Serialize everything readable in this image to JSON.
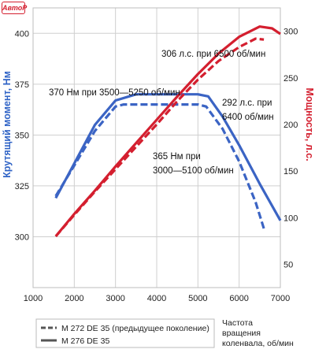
{
  "logo": {
    "text": "АвтоР"
  },
  "chart_data": {
    "type": "line",
    "title": "",
    "xlabel": "Частота вращения коленвала, об/мин",
    "xlabel_lines": [
      "Частота",
      "вращения",
      "коленвала, об/мин"
    ],
    "xlim": [
      1000,
      7000
    ],
    "x_ticks": [
      1000,
      2000,
      3000,
      4000,
      5000,
      6000,
      7000
    ],
    "y_left": {
      "label": "Крутящий момент, Нм",
      "range": [
        275,
        412.5
      ],
      "ticks": [
        300,
        325,
        350,
        375,
        400
      ]
    },
    "y_right": {
      "label": "Мощность, л.с.",
      "range": [
        25,
        325
      ],
      "ticks": [
        50,
        100,
        150,
        200,
        250,
        300
      ]
    },
    "grid": true,
    "series": [
      {
        "name": "M 272 DE 35 (предыдущее поколение)",
        "quantity": "torque",
        "axis": "left",
        "color": "#3b64c4",
        "dash": true,
        "x": [
          1550,
          2000,
          2500,
          3000,
          3200,
          4000,
          5000,
          5200,
          5600,
          6000,
          6400,
          6600
        ],
        "y": [
          320,
          335,
          352,
          364,
          365,
          365,
          365,
          364,
          353,
          337,
          317,
          304
        ]
      },
      {
        "name": "M 276 DE 35",
        "quantity": "torque",
        "axis": "left",
        "color": "#3b64c4",
        "dash": false,
        "x": [
          1550,
          2000,
          2500,
          3000,
          3500,
          4000,
          5000,
          5250,
          5600,
          6000,
          6500,
          7000
        ],
        "y": [
          319,
          336,
          355,
          367,
          370,
          370,
          370,
          369,
          359,
          345,
          326,
          308
        ]
      },
      {
        "name": "M 272 DE 35 (предыдущее поколение)",
        "quantity": "power",
        "axis": "right",
        "color": "#d41f2f",
        "dash": true,
        "x": [
          1550,
          2000,
          2500,
          3000,
          3500,
          4000,
          4500,
          5000,
          5500,
          6000,
          6400,
          6600
        ],
        "y": [
          80,
          103,
          128,
          152,
          176,
          200,
          225,
          248,
          268,
          283,
          292,
          291
        ]
      },
      {
        "name": "M 276 DE 35",
        "quantity": "power",
        "axis": "right",
        "color": "#d41f2f",
        "dash": false,
        "x": [
          1550,
          2000,
          2500,
          3000,
          3500,
          4000,
          4500,
          5000,
          5500,
          6000,
          6500,
          6800,
          7000
        ],
        "y": [
          80,
          104,
          129,
          155,
          180,
          205,
          230,
          254,
          276,
          294,
          305,
          303,
          297
        ]
      }
    ],
    "annotations": [
      {
        "lines": [
          "306 л.с. при 6500 об/мин"
        ]
      },
      {
        "lines": [
          "370 Нм при 3500—5250 об/мин"
        ]
      },
      {
        "lines": [
          "292 л.с. при",
          "6400 об/мин"
        ]
      },
      {
        "lines": [
          "365 Нм при",
          "3000—5100 об/мин"
        ]
      }
    ],
    "legend": [
      {
        "label": "M 272 DE 35 (предыдущее поколение)",
        "dash": true
      },
      {
        "label": "M 276 DE 35",
        "dash": false
      }
    ],
    "legend_position": "bottom-left"
  }
}
